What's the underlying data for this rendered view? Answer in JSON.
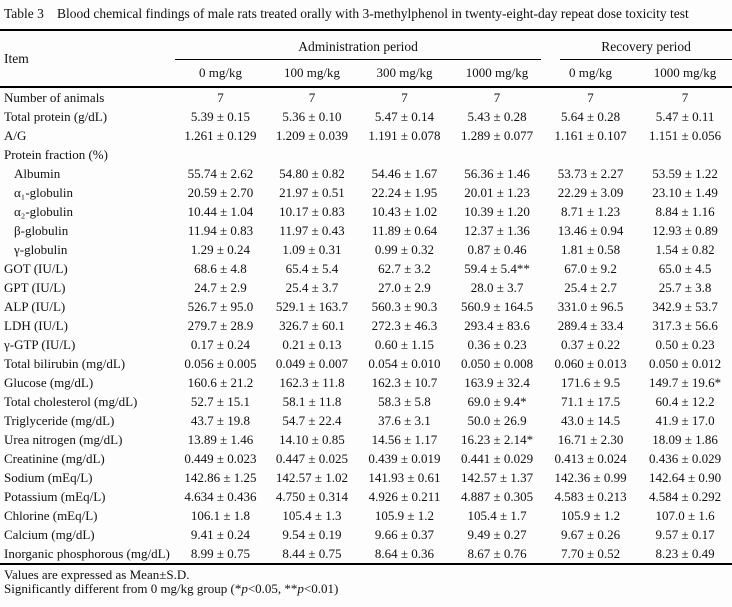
{
  "table_caption": {
    "label": "Table 3",
    "text": "Blood chemical findings of male rats treated orally with 3-methylphenol in twenty-eight-day repeat dose toxicity test"
  },
  "header": {
    "item_label": "Item",
    "admin_group": {
      "label": "Administration period",
      "columns": [
        "0 mg/kg",
        "100 mg/kg",
        "300 mg/kg",
        "1000 mg/kg"
      ]
    },
    "recovery_group": {
      "label": "Recovery period",
      "columns": [
        "0 mg/kg",
        "1000 mg/kg"
      ]
    }
  },
  "rows": [
    {
      "label": "Number of animals",
      "indent": false,
      "values": [
        "7",
        "7",
        "7",
        "7",
        "7",
        "7"
      ]
    },
    {
      "label": "Total protein (g/dL)",
      "indent": false,
      "values": [
        "5.39 ± 0.15",
        "5.36 ± 0.10",
        "5.47 ± 0.14",
        "5.43 ± 0.28",
        "5.64 ± 0.28",
        "5.47 ± 0.11"
      ]
    },
    {
      "label": "A/G",
      "indent": false,
      "values": [
        "1.261 ± 0.129",
        "1.209 ± 0.039",
        "1.191 ± 0.078",
        "1.289 ± 0.077",
        "1.161 ± 0.107",
        "1.151 ± 0.056"
      ]
    },
    {
      "label": "Protein fraction (%)",
      "indent": false,
      "values": [
        "",
        "",
        "",
        "",
        "",
        ""
      ]
    },
    {
      "label": "Albumin",
      "indent": true,
      "values": [
        "55.74 ± 2.62",
        "54.80 ± 0.82",
        "54.46 ± 1.67",
        "56.36 ± 1.46",
        "53.73 ± 2.27",
        "53.59 ± 1.22"
      ]
    },
    {
      "label": "α₁-globulin",
      "indent": true,
      "values": [
        "20.59 ± 2.70",
        "21.97 ± 0.51",
        "22.24 ± 1.95",
        "20.01 ± 1.23",
        "22.29 ± 3.09",
        "23.10 ± 1.49"
      ]
    },
    {
      "label": "α₂-globulin",
      "indent": true,
      "values": [
        "10.44 ± 1.04",
        "10.17 ± 0.83",
        "10.43 ± 1.02",
        "10.39 ± 1.20",
        "8.71 ± 1.23",
        "8.84 ± 1.16"
      ]
    },
    {
      "label": "β-globulin",
      "indent": true,
      "values": [
        "11.94 ± 0.83",
        "11.97 ± 0.43",
        "11.89 ± 0.64",
        "12.37 ± 1.36",
        "13.46 ± 0.94",
        "12.93 ± 0.89"
      ]
    },
    {
      "label": "γ-globulin",
      "indent": true,
      "values": [
        "1.29 ± 0.24",
        "1.09 ± 0.31",
        "0.99 ± 0.32",
        "0.87 ± 0.46",
        "1.81 ± 0.58",
        "1.54 ± 0.82"
      ]
    },
    {
      "label": "GOT (IU/L)",
      "indent": false,
      "values": [
        "68.6 ± 4.8",
        "65.4 ± 5.4",
        "62.7 ± 3.2",
        "59.4 ± 5.4**",
        "67.0 ± 9.2",
        "65.0 ± 4.5"
      ]
    },
    {
      "label": "GPT (IU/L)",
      "indent": false,
      "values": [
        "24.7 ± 2.9",
        "25.4 ± 3.7",
        "27.0 ± 2.9",
        "28.0 ± 3.7",
        "25.4 ± 2.7",
        "25.7 ± 3.8"
      ]
    },
    {
      "label": "ALP (IU/L)",
      "indent": false,
      "values": [
        "526.7 ± 95.0",
        "529.1 ± 163.7",
        "560.3 ± 90.3",
        "560.9 ± 164.5",
        "331.0 ± 96.5",
        "342.9 ± 53.7"
      ]
    },
    {
      "label": "LDH (IU/L)",
      "indent": false,
      "values": [
        "279.7 ± 28.9",
        "326.7 ± 60.1",
        "272.3 ± 46.3",
        "293.4 ± 83.6",
        "289.4 ± 33.4",
        "317.3 ± 56.6"
      ]
    },
    {
      "label": "γ-GTP (IU/L)",
      "indent": false,
      "values": [
        "0.17 ± 0.24",
        "0.21 ± 0.13",
        "0.60 ± 1.15",
        "0.36 ± 0.23",
        "0.37 ± 0.22",
        "0.50 ± 0.23"
      ]
    },
    {
      "label": "Total bilirubin (mg/dL)",
      "indent": false,
      "values": [
        "0.056 ± 0.005",
        "0.049 ± 0.007",
        "0.054 ± 0.010",
        "0.050 ± 0.008",
        "0.060 ± 0.013",
        "0.050 ± 0.012"
      ]
    },
    {
      "label": "Glucose (mg/dL)",
      "indent": false,
      "values": [
        "160.6 ± 21.2",
        "162.3 ± 11.8",
        "162.3 ± 10.7",
        "163.9 ± 32.4",
        "171.6 ± 9.5",
        "149.7 ± 19.6*"
      ]
    },
    {
      "label": "Total cholesterol (mg/dL)",
      "indent": false,
      "values": [
        "52.7 ± 15.1",
        "58.1 ± 11.8",
        "58.3 ± 5.8",
        "69.0 ± 9.4*",
        "71.1 ± 17.5",
        "60.4 ± 12.2"
      ]
    },
    {
      "label": "Triglyceride (mg/dL)",
      "indent": false,
      "values": [
        "43.7 ± 19.8",
        "54.7 ± 22.4",
        "37.6 ± 3.1",
        "50.0 ± 26.9",
        "43.0 ± 14.5",
        "41.9 ± 17.0"
      ]
    },
    {
      "label": "Urea nitrogen (mg/dL)",
      "indent": false,
      "values": [
        "13.89 ± 1.46",
        "14.10 ± 0.85",
        "14.56 ± 1.17",
        "16.23 ± 2.14*",
        "16.71 ± 2.30",
        "18.09 ± 1.86"
      ]
    },
    {
      "label": "Creatinine (mg/dL)",
      "indent": false,
      "values": [
        "0.449 ± 0.023",
        "0.447 ± 0.025",
        "0.439 ± 0.019",
        "0.441 ± 0.029",
        "0.413 ± 0.024",
        "0.436 ± 0.029"
      ]
    },
    {
      "label": "Sodium (mEq/L)",
      "indent": false,
      "values": [
        "142.86 ± 1.25",
        "142.57 ± 1.02",
        "141.93 ± 0.61",
        "142.57 ± 1.37",
        "142.36 ± 0.99",
        "142.64 ± 0.90"
      ]
    },
    {
      "label": "Potassium (mEq/L)",
      "indent": false,
      "values": [
        "4.634 ± 0.436",
        "4.750 ± 0.314",
        "4.926 ± 0.211",
        "4.887 ± 0.305",
        "4.583 ± 0.213",
        "4.584 ± 0.292"
      ]
    },
    {
      "label": "Chlorine (mEq/L)",
      "indent": false,
      "values": [
        "106.1 ± 1.8",
        "105.4 ± 1.3",
        "105.9 ± 1.2",
        "105.4 ± 1.7",
        "105.9 ± 1.2",
        "107.0 ± 1.6"
      ]
    },
    {
      "label": "Calcium (mg/dL)",
      "indent": false,
      "values": [
        "9.41 ± 0.24",
        "9.54 ± 0.19",
        "9.66 ± 0.37",
        "9.49 ± 0.27",
        "9.67 ± 0.26",
        "9.57 ± 0.17"
      ]
    },
    {
      "label": "Inorganic phosphorous (mg/dL)",
      "indent": false,
      "values": [
        "8.99 ± 0.75",
        "8.44 ± 0.75",
        "8.64 ± 0.36",
        "8.67 ± 0.76",
        "7.70 ± 0.52",
        "8.23 ± 0.49"
      ]
    }
  ],
  "footnotes": {
    "line1": "Values are expressed as Mean±S.D.",
    "line2_parts": [
      "Significantly different from 0 mg/kg group (*",
      "p",
      "<0.05, **",
      "p",
      "<0.01)"
    ]
  }
}
